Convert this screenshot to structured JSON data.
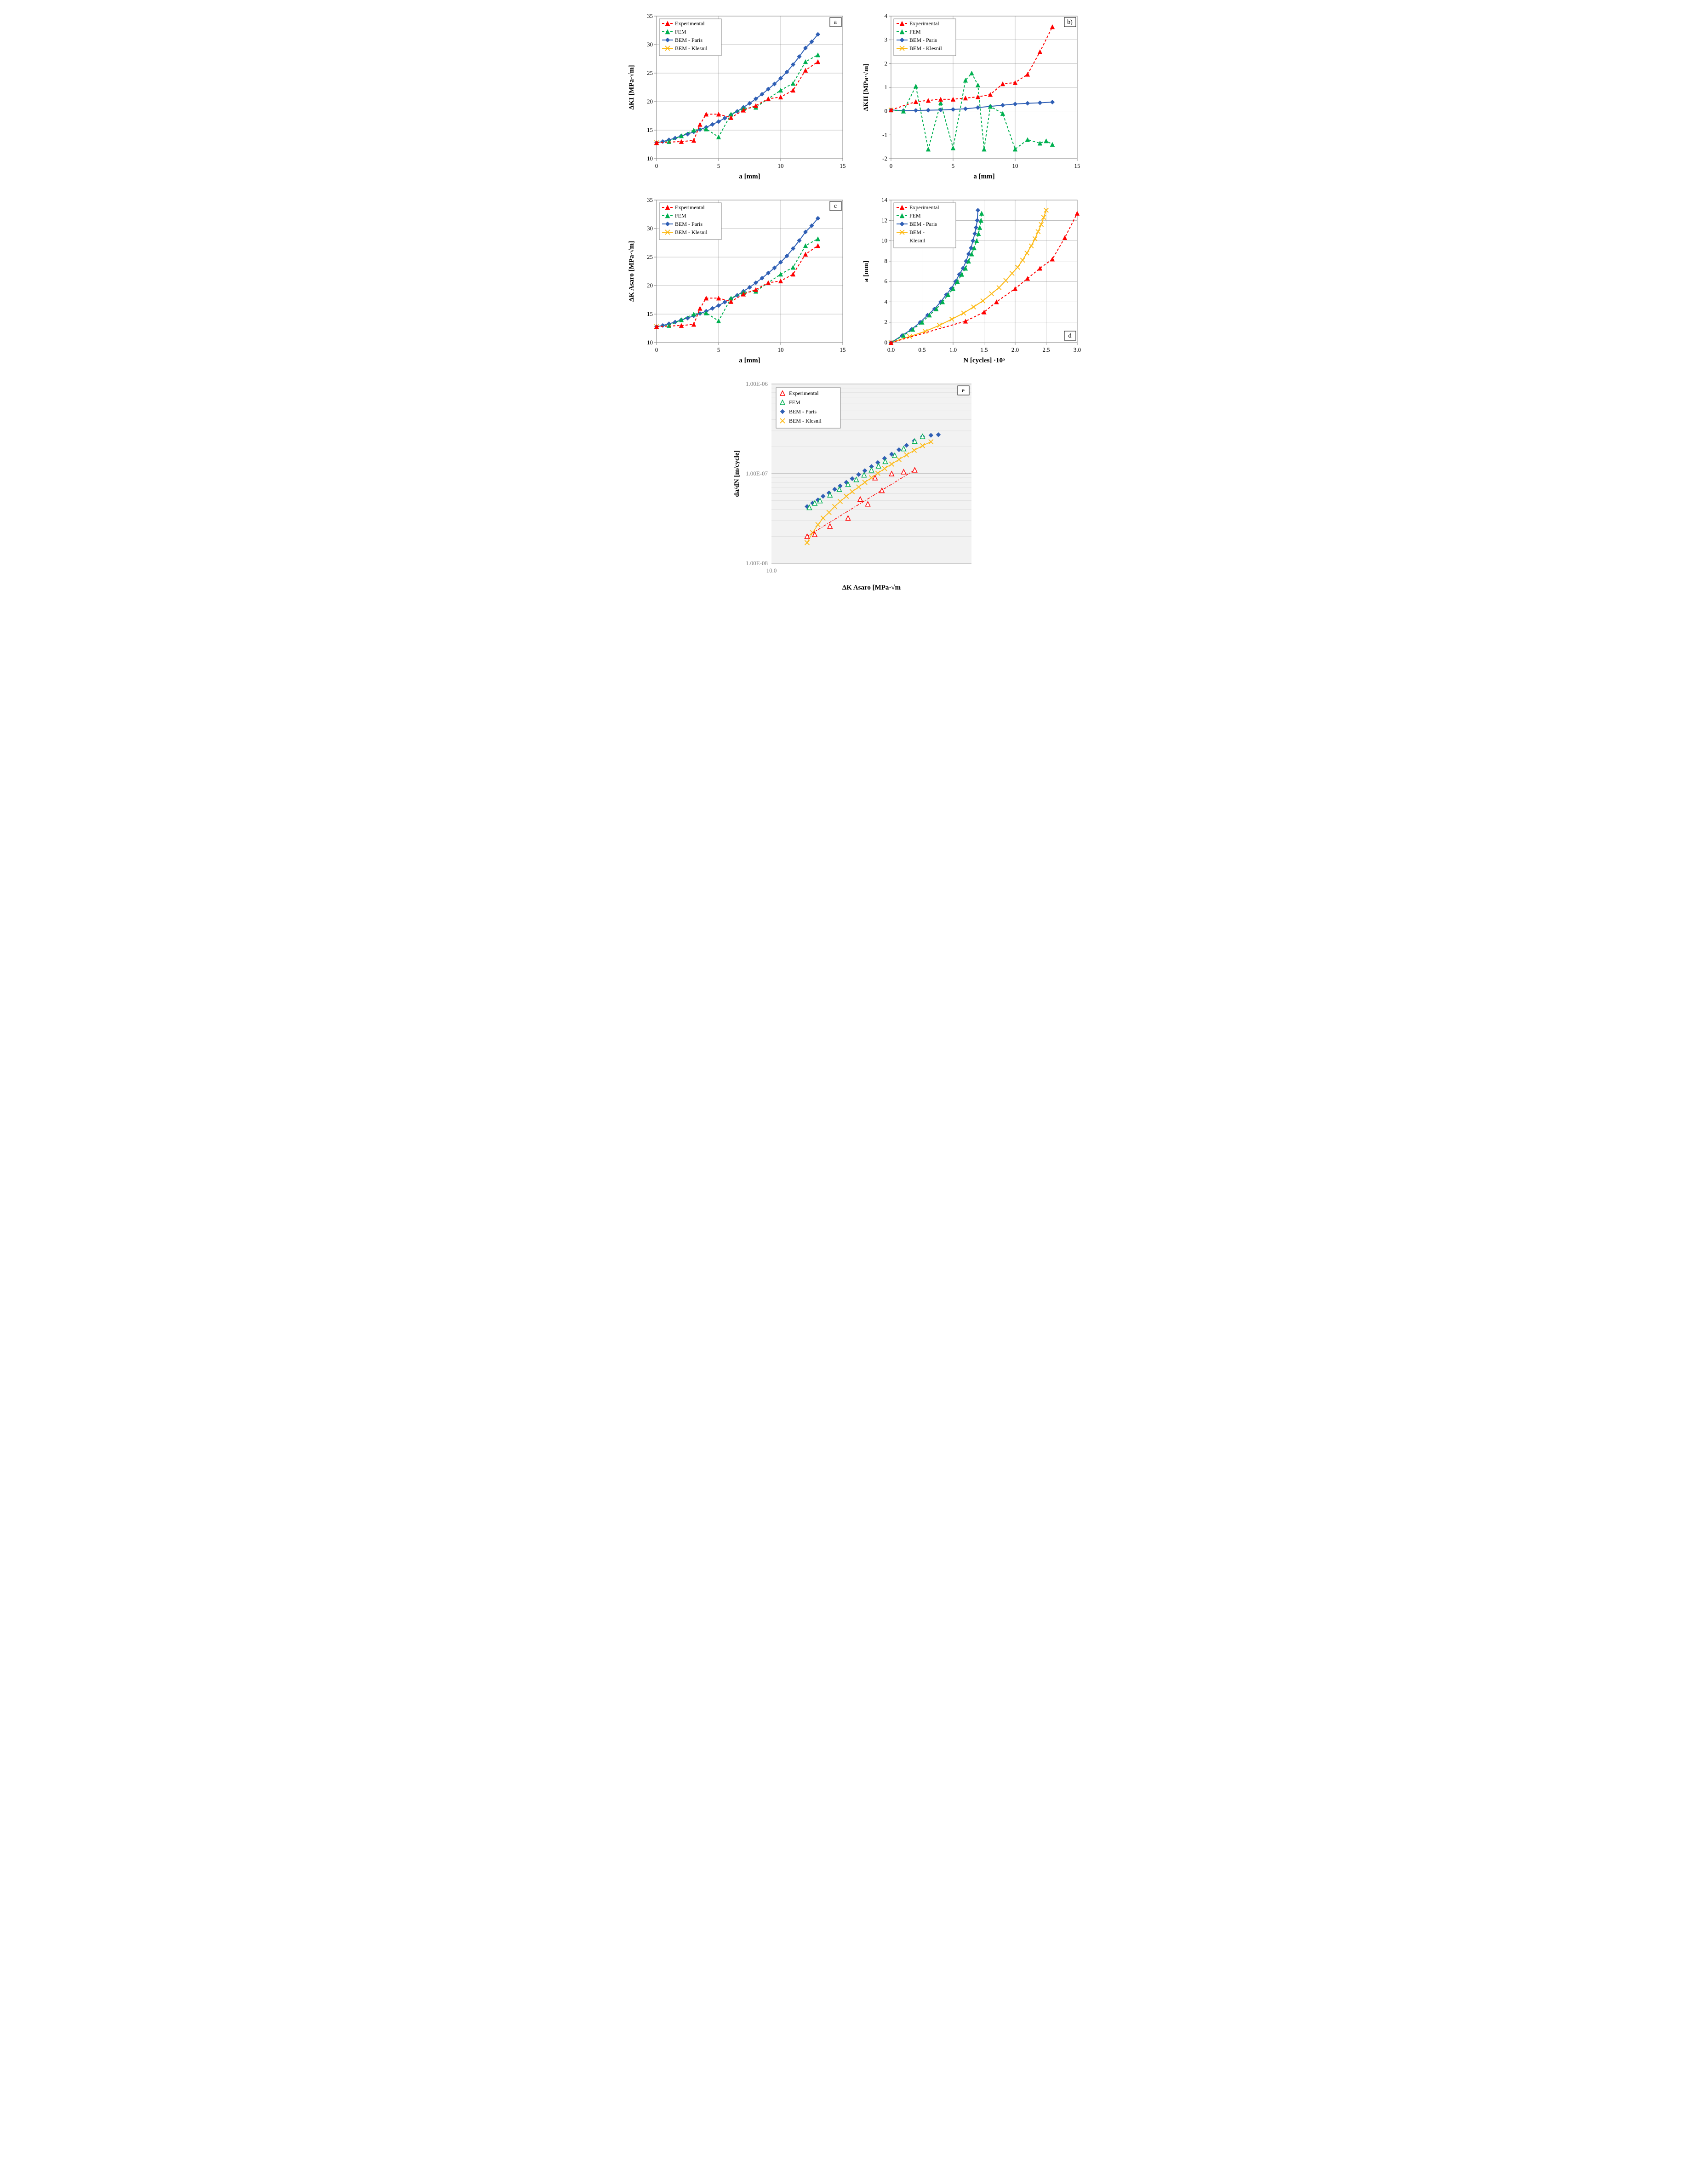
{
  "colors": {
    "experimental": "#ff0000",
    "fem": "#00b050",
    "bem_paris": "#2f5fb5",
    "bem_klesnil": "#fdb913",
    "grid": "#808080",
    "bg": "#ffffff",
    "plot_bg_e": "#f2f2f2",
    "tick_gray": "#808080"
  },
  "markers": {
    "experimental": "triangle",
    "fem": "triangle",
    "bem_paris": "diamond",
    "bem_klesnil": "cross"
  },
  "line_dash": {
    "experimental": "5,4",
    "fem": "5,4",
    "bem_paris": "none",
    "bem_klesnil": "none"
  },
  "line_width": 2,
  "marker_size": 6,
  "font": {
    "tick": 13,
    "axis": 15,
    "legend": 12,
    "panel": 14
  },
  "chart_a": {
    "panel_label": "a",
    "xlabel": "a [mm]",
    "ylabel": "ΔKI [MPa·√m]",
    "xlim": [
      0,
      15
    ],
    "xtick_step": 5,
    "ylim": [
      10,
      35
    ],
    "ytick_step": 5,
    "legend_pos": "top-left",
    "series": {
      "experimental": {
        "x": [
          0,
          2,
          3,
          3.5,
          4,
          5,
          6,
          7,
          8,
          9,
          10,
          11,
          12,
          13
        ],
        "y": [
          12.8,
          13,
          13.2,
          16,
          17.8,
          17.8,
          17.2,
          18.5,
          19.3,
          20.5,
          20.8,
          22,
          25.5,
          27
        ]
      },
      "fem": {
        "x": [
          0,
          1,
          2,
          3,
          4,
          5,
          6,
          7,
          8,
          9,
          10,
          11,
          12,
          13
        ],
        "y": [
          12.8,
          13,
          14,
          15,
          15.2,
          13.8,
          17.8,
          18.8,
          19,
          20.5,
          22,
          23.2,
          27,
          28.2
        ]
      },
      "bem_paris": {
        "x": [
          0,
          0.5,
          1,
          1.5,
          2,
          2.5,
          3,
          3.5,
          4,
          4.5,
          5,
          5.5,
          6,
          6.5,
          7,
          7.5,
          8,
          8.5,
          9,
          9.5,
          10,
          10.5,
          11,
          11.5,
          12,
          12.5,
          13
        ],
        "y": [
          12.8,
          13,
          13.3,
          13.6,
          14,
          14.3,
          14.7,
          15.1,
          15.5,
          16,
          16.5,
          17.1,
          17.7,
          18.3,
          19,
          19.7,
          20.5,
          21.3,
          22.2,
          23.1,
          24.1,
          25.2,
          26.5,
          27.9,
          29.4,
          30.5,
          31.8
        ]
      },
      "bem_klesnil": {
        "x": [
          0
        ],
        "y": [
          12.8
        ]
      }
    }
  },
  "chart_b": {
    "panel_label": "b)",
    "xlabel": "a [mm]",
    "ylabel": "ΔKII [MPa·√m]",
    "xlim": [
      0,
      15
    ],
    "xtick_step": 5,
    "ylim": [
      -2,
      4
    ],
    "ytick_step": 1,
    "legend_pos": "top-left",
    "series": {
      "experimental": {
        "x": [
          0,
          2,
          3,
          4,
          5,
          6,
          7,
          8,
          9,
          10,
          11,
          12,
          13
        ],
        "y": [
          0.05,
          0.4,
          0.45,
          0.5,
          0.5,
          0.55,
          0.6,
          0.7,
          1.15,
          1.2,
          1.55,
          2.5,
          3.55
        ]
      },
      "fem": {
        "x": [
          0,
          1,
          2,
          3,
          4,
          5,
          6,
          6.5,
          7,
          7.5,
          8,
          9,
          10,
          11,
          12,
          12.5,
          13
        ],
        "y": [
          0.05,
          0,
          1.05,
          -1.6,
          0.35,
          -1.55,
          1.3,
          1.6,
          1.1,
          -1.6,
          0.2,
          -0.1,
          -1.6,
          -1.2,
          -1.35,
          -1.25,
          -1.4
        ]
      },
      "bem_paris": {
        "x": [
          0,
          1,
          2,
          3,
          4,
          5,
          6,
          7,
          8,
          9,
          10,
          11,
          12,
          13
        ],
        "y": [
          0.05,
          0.02,
          0.03,
          0.04,
          0.05,
          0.07,
          0.1,
          0.15,
          0.2,
          0.25,
          0.3,
          0.33,
          0.35,
          0.38
        ]
      },
      "bem_klesnil": {
        "x": [
          0
        ],
        "y": [
          0.05
        ]
      }
    }
  },
  "chart_c": {
    "panel_label": "c",
    "xlabel": "a [mm]",
    "ylabel": "ΔK Asaro [MPa·√m]",
    "xlim": [
      0,
      15
    ],
    "xtick_step": 5,
    "ylim": [
      10,
      35
    ],
    "ytick_step": 5,
    "legend_pos": "top-left",
    "series": {
      "experimental": {
        "x": [
          0,
          2,
          3,
          3.5,
          4,
          5,
          6,
          7,
          8,
          9,
          10,
          11,
          12,
          13
        ],
        "y": [
          12.8,
          13,
          13.2,
          16,
          17.8,
          17.8,
          17.2,
          18.5,
          19.3,
          20.5,
          20.8,
          22,
          25.5,
          27
        ]
      },
      "fem": {
        "x": [
          0,
          1,
          2,
          3,
          4,
          5,
          6,
          7,
          8,
          9,
          10,
          11,
          12,
          13
        ],
        "y": [
          12.8,
          13,
          14,
          15,
          15.2,
          13.8,
          17.8,
          18.8,
          19,
          20.5,
          22,
          23.2,
          27,
          28.2
        ]
      },
      "bem_paris": {
        "x": [
          0,
          0.5,
          1,
          1.5,
          2,
          2.5,
          3,
          3.5,
          4,
          4.5,
          5,
          5.5,
          6,
          6.5,
          7,
          7.5,
          8,
          8.5,
          9,
          9.5,
          10,
          10.5,
          11,
          11.5,
          12,
          12.5,
          13
        ],
        "y": [
          12.8,
          13,
          13.3,
          13.6,
          14,
          14.3,
          14.7,
          15.1,
          15.5,
          16,
          16.5,
          17.1,
          17.7,
          18.3,
          19,
          19.7,
          20.5,
          21.3,
          22.2,
          23.1,
          24.1,
          25.2,
          26.5,
          27.9,
          29.4,
          30.5,
          31.8
        ]
      },
      "bem_klesnil": {
        "x": [
          0
        ],
        "y": [
          12.8
        ]
      }
    }
  },
  "chart_d": {
    "panel_label": "d",
    "xlabel": "N [cycles]  ·10⁵",
    "ylabel": "a [mm]",
    "xlim": [
      0,
      3
    ],
    "xtick_step": 0.5,
    "ylim": [
      0,
      14
    ],
    "ytick_step": 2,
    "legend_pos": "top-left",
    "series": {
      "experimental": {
        "x": [
          0,
          1.2,
          1.5,
          1.7,
          2,
          2.2,
          2.4,
          2.6,
          2.8,
          3
        ],
        "y": [
          0,
          2.1,
          3,
          4,
          5.3,
          6.3,
          7.3,
          8.2,
          10.3,
          12.7
        ]
      },
      "fem": {
        "x": [
          0,
          0.2,
          0.35,
          0.5,
          0.62,
          0.73,
          0.83,
          0.92,
          1,
          1.07,
          1.14,
          1.2,
          1.25,
          1.3,
          1.34,
          1.38,
          1.41,
          1.43,
          1.45,
          1.46
        ],
        "y": [
          0,
          0.7,
          1.3,
          2,
          2.7,
          3.3,
          4,
          4.7,
          5.3,
          6,
          6.7,
          7.3,
          8,
          8.7,
          9.3,
          10,
          10.7,
          11.3,
          12,
          12.7
        ]
      },
      "bem_paris": {
        "x": [
          0,
          0.18,
          0.33,
          0.47,
          0.59,
          0.7,
          0.8,
          0.89,
          0.97,
          1.04,
          1.1,
          1.16,
          1.21,
          1.25,
          1.29,
          1.32,
          1.35,
          1.37,
          1.39,
          1.4
        ],
        "y": [
          0,
          0.7,
          1.3,
          2,
          2.7,
          3.3,
          4,
          4.7,
          5.3,
          6,
          6.7,
          7.3,
          8,
          8.7,
          9.3,
          10,
          10.7,
          11.3,
          12,
          13
        ]
      },
      "bem_klesnil": {
        "x": [
          0,
          0.3,
          0.55,
          0.78,
          0.98,
          1.17,
          1.33,
          1.48,
          1.62,
          1.74,
          1.85,
          1.95,
          2.04,
          2.12,
          2.19,
          2.26,
          2.32,
          2.37,
          2.42,
          2.46,
          2.5
        ],
        "y": [
          0,
          0.6,
          1.1,
          1.7,
          2.3,
          2.9,
          3.5,
          4.1,
          4.8,
          5.4,
          6.1,
          6.8,
          7.4,
          8.1,
          8.8,
          9.5,
          10.2,
          10.9,
          11.6,
          12.3,
          13
        ]
      }
    }
  },
  "chart_e": {
    "panel_label": "e",
    "xlabel": "ΔK Asaro [MPa·√m",
    "ylabel": "da/dN [m/cycle]",
    "xlim_log": [
      10,
      40
    ],
    "xtick_vals": [
      10
    ],
    "ylim_log": [
      1e-08,
      1e-06
    ],
    "ytick_labels": [
      "1.00E-08",
      "1.00E-07",
      "1.00E-06"
    ],
    "legend_pos": "top-left",
    "plot_bg": "#f2f2f2",
    "series": {
      "experimental": {
        "x": [
          12.8,
          13.5,
          15,
          17,
          18.5,
          19.5,
          20.5,
          21.5,
          23,
          25,
          27
        ],
        "y": [
          2e-08,
          2.1e-08,
          2.6e-08,
          3.2e-08,
          5.2e-08,
          4.6e-08,
          9e-08,
          6.5e-08,
          1e-07,
          1.05e-07,
          1.1e-07
        ]
      },
      "fem": {
        "x": [
          13,
          13.5,
          14,
          15,
          16,
          17,
          18,
          19,
          20,
          21,
          22,
          23.5,
          25,
          27,
          28.5
        ],
        "y": [
          4.2e-08,
          4.7e-08,
          5e-08,
          5.8e-08,
          6.7e-08,
          7.6e-08,
          8.6e-08,
          9.7e-08,
          1.1e-07,
          1.22e-07,
          1.37e-07,
          1.6e-07,
          1.9e-07,
          2.3e-07,
          2.6e-07
        ]
      },
      "bem_paris": {
        "x": [
          12.8,
          13.3,
          13.8,
          14.3,
          14.9,
          15.5,
          16.1,
          16.8,
          17.5,
          18.3,
          19.1,
          20,
          20.9,
          21.9,
          23,
          24.2,
          25.5,
          26.9,
          28.5,
          30.2,
          31.8
        ],
        "y": [
          4.3e-08,
          4.7e-08,
          5.1e-08,
          5.6e-08,
          6.1e-08,
          6.7e-08,
          7.3e-08,
          8e-08,
          8.8e-08,
          9.8e-08,
          1.08e-07,
          1.2e-07,
          1.33e-07,
          1.48e-07,
          1.65e-07,
          1.85e-07,
          2.07e-07,
          2.32e-07,
          2.6e-07,
          2.68e-07,
          2.72e-07
        ]
      },
      "bem_klesnil": {
        "x": [
          12.8,
          13.3,
          13.8,
          14.3,
          14.9,
          15.5,
          16.1,
          16.8,
          17.5,
          18.3,
          19.1,
          20,
          20.9,
          21.9,
          23,
          24.2,
          25.5,
          26.9,
          28.5,
          30.2
        ],
        "y": [
          1.7e-08,
          2.2e-08,
          2.7e-08,
          3.2e-08,
          3.7e-08,
          4.3e-08,
          4.9e-08,
          5.6e-08,
          6.3e-08,
          7.1e-08,
          8e-08,
          9e-08,
          1.01e-07,
          1.14e-07,
          1.28e-07,
          1.44e-07,
          1.62e-07,
          1.82e-07,
          2.05e-07,
          2.27e-07
        ]
      }
    },
    "markers_open": {
      "experimental": true,
      "fem": true,
      "bem_paris": false,
      "bem_klesnil": false
    }
  },
  "legend_labels": {
    "experimental": "Experimental",
    "fem": "FEM",
    "bem_paris": "BEM - Paris",
    "bem_klesnil": "BEM - Klesnil"
  },
  "legend_labels_d": {
    "experimental": "Experimental",
    "fem": "FEM",
    "bem_paris": "BEM - Paris",
    "bem_klesnil": "BEM -\nKlesnil"
  }
}
